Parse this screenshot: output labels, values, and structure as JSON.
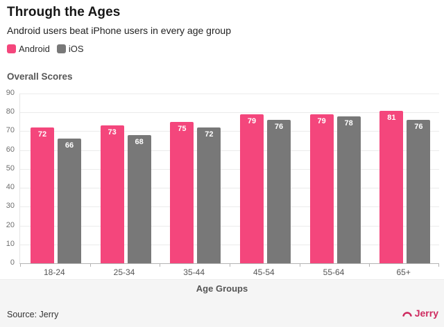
{
  "header": {
    "title": "Through the Ages",
    "subtitle": "Android users beat iPhone users in every age group"
  },
  "chart_data": {
    "type": "bar",
    "title": "Through the Ages",
    "subtitle": "Android users beat iPhone users in every age group",
    "ylabel": "Overall Scores",
    "xlabel": "Age Groups",
    "categories": [
      "18-24",
      "25-34",
      "35-44",
      "45-54",
      "55-64",
      "65+"
    ],
    "series": [
      {
        "name": "Android",
        "color": "#f4467c",
        "values": [
          72,
          73,
          75,
          79,
          79,
          81
        ]
      },
      {
        "name": "iOS",
        "color": "#787878",
        "values": [
          66,
          68,
          72,
          76,
          78,
          76
        ]
      }
    ],
    "ylim": [
      0,
      90
    ],
    "ytick_step": 10,
    "grid": true,
    "value_labels": "inside-top",
    "legend_position": "top-left"
  },
  "footer": {
    "source": "Source: Jerry",
    "logo_text": "Jerry",
    "logo_color": "#ce2a5f"
  }
}
